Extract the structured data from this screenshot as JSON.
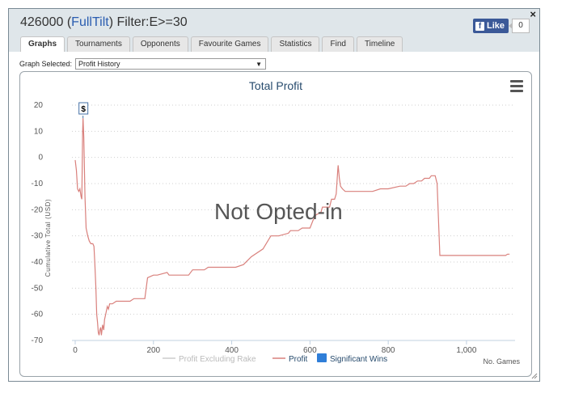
{
  "header": {
    "player_id": "426000",
    "site": "FullTilt",
    "filter": "Filter:E>=30",
    "close_label": "×"
  },
  "facebook": {
    "like_label": "Like",
    "count": "0"
  },
  "tabs": [
    "Graphs",
    "Tournaments",
    "Opponents",
    "Favourite Games",
    "Statistics",
    "Find",
    "Timeline"
  ],
  "graph_selector": {
    "label": "Graph Selected:",
    "value": "Profit History"
  },
  "watermark": "Not Opted-in",
  "colors": {
    "profit": "#d9807c",
    "excl_rake": "#cccccc",
    "sig_wins": "#2f7ed8",
    "title": "#274b6d"
  },
  "chart_data": {
    "type": "line",
    "title": "Total Profit",
    "xlabel": "No. Games",
    "ylabel": "Cumulative Total (USD)",
    "xlim": [
      0,
      1120
    ],
    "ylim": [
      -70,
      20
    ],
    "x_ticks": [
      0,
      200,
      400,
      600,
      800,
      1000
    ],
    "x_tick_labels": [
      "0",
      "200",
      "400",
      "600",
      "800",
      "1,000"
    ],
    "y_ticks": [
      20,
      10,
      0,
      -10,
      -20,
      -30,
      -40,
      -50,
      -60,
      -70
    ],
    "flag": {
      "x": 20,
      "y": 15,
      "label": "$"
    },
    "legend": [
      "Profit Excluding Rake",
      "Profit",
      "Significant Wins"
    ],
    "series": [
      {
        "name": "Profit",
        "points": [
          [
            0,
            -1
          ],
          [
            3,
            -5
          ],
          [
            6,
            -12
          ],
          [
            9,
            -13
          ],
          [
            12,
            -12
          ],
          [
            15,
            -15
          ],
          [
            17,
            -16
          ],
          [
            19,
            10
          ],
          [
            20,
            15
          ],
          [
            22,
            8
          ],
          [
            25,
            -15
          ],
          [
            28,
            -27
          ],
          [
            32,
            -30
          ],
          [
            36,
            -32
          ],
          [
            40,
            -33
          ],
          [
            45,
            -33
          ],
          [
            48,
            -34
          ],
          [
            50,
            -40
          ],
          [
            53,
            -50
          ],
          [
            55,
            -60
          ],
          [
            57,
            -63
          ],
          [
            59,
            -67
          ],
          [
            61,
            -68
          ],
          [
            63,
            -66
          ],
          [
            65,
            -65
          ],
          [
            67,
            -68
          ],
          [
            70,
            -64
          ],
          [
            73,
            -66
          ],
          [
            75,
            -62
          ],
          [
            78,
            -60
          ],
          [
            82,
            -57
          ],
          [
            85,
            -58
          ],
          [
            88,
            -56
          ],
          [
            95,
            -56
          ],
          [
            105,
            -55
          ],
          [
            120,
            -55
          ],
          [
            140,
            -55
          ],
          [
            150,
            -54
          ],
          [
            170,
            -54
          ],
          [
            178,
            -54
          ],
          [
            185,
            -46
          ],
          [
            200,
            -45
          ],
          [
            210,
            -45
          ],
          [
            235,
            -44
          ],
          [
            240,
            -45
          ],
          [
            290,
            -45
          ],
          [
            300,
            -43
          ],
          [
            330,
            -43
          ],
          [
            340,
            -42
          ],
          [
            350,
            -42
          ],
          [
            380,
            -42
          ],
          [
            410,
            -42
          ],
          [
            430,
            -41
          ],
          [
            450,
            -38
          ],
          [
            480,
            -35
          ],
          [
            500,
            -30
          ],
          [
            520,
            -30
          ],
          [
            545,
            -29
          ],
          [
            550,
            -28
          ],
          [
            570,
            -28
          ],
          [
            580,
            -27
          ],
          [
            600,
            -27
          ],
          [
            608,
            -24
          ],
          [
            615,
            -22
          ],
          [
            628,
            -21
          ],
          [
            632,
            -19
          ],
          [
            650,
            -19
          ],
          [
            655,
            -16
          ],
          [
            663,
            -16
          ],
          [
            667,
            -14
          ],
          [
            671,
            -5
          ],
          [
            672,
            -3
          ],
          [
            675,
            -8
          ],
          [
            678,
            -11
          ],
          [
            683,
            -12
          ],
          [
            690,
            -13
          ],
          [
            730,
            -13
          ],
          [
            760,
            -13
          ],
          [
            780,
            -12
          ],
          [
            800,
            -12
          ],
          [
            830,
            -11
          ],
          [
            845,
            -11
          ],
          [
            855,
            -10
          ],
          [
            865,
            -10
          ],
          [
            875,
            -9
          ],
          [
            885,
            -9
          ],
          [
            893,
            -8
          ],
          [
            905,
            -8
          ],
          [
            910,
            -7
          ],
          [
            920,
            -7
          ],
          [
            925,
            -10
          ],
          [
            932,
            -37.5
          ],
          [
            980,
            -37.5
          ],
          [
            1050,
            -37.5
          ],
          [
            1100,
            -37.5
          ],
          [
            1105,
            -37
          ],
          [
            1110,
            -37
          ]
        ]
      }
    ]
  }
}
